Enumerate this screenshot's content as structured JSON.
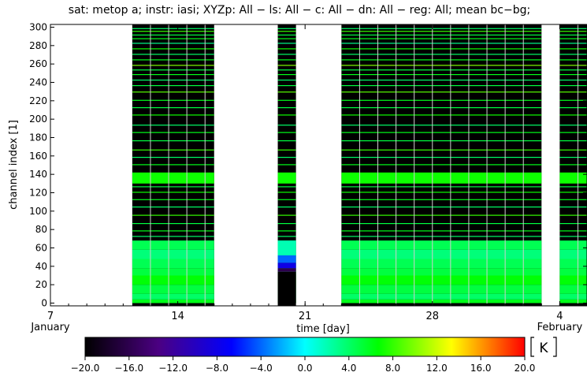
{
  "chart_data": {
    "type": "heatmap",
    "title": "sat: metop a; instr: iasi; XYZp: All − ls: All − c: All − dn: All − reg: All; mean bc−bg;",
    "xlabel": "time [day]",
    "ylabel": "channel index [1]",
    "x_ticks": [
      {
        "day": 7,
        "label": "7",
        "sublabel": "January"
      },
      {
        "day": 14,
        "label": "14",
        "sublabel": ""
      },
      {
        "day": 21,
        "label": "21",
        "sublabel": ""
      },
      {
        "day": 28,
        "label": "28",
        "sublabel": ""
      },
      {
        "day": 35,
        "label": "4",
        "sublabel": "February"
      }
    ],
    "xlim": [
      7,
      36.5
    ],
    "y_ticks": [
      "0",
      "20",
      "40",
      "60",
      "80",
      "100",
      "120",
      "140",
      "160",
      "180",
      "200",
      "220",
      "240",
      "260",
      "280",
      "300"
    ],
    "ylim": [
      -3,
      303
    ],
    "data_segments": [
      {
        "start_day": 11.5,
        "end_day": 16.0,
        "column_days": [
          11.5,
          12.5,
          13.5,
          14.5,
          15.5
        ]
      },
      {
        "start_day": 19.5,
        "end_day": 20.5,
        "column_days": [
          19.5
        ]
      },
      {
        "start_day": 23.0,
        "end_day": 34.0,
        "column_days": [
          23.0,
          24.0,
          25.0,
          26.0,
          27.0,
          28.0,
          29.0,
          30.0,
          31.0,
          32.0,
          33.0
        ]
      },
      {
        "start_day": 35.0,
        "end_day": 36.5,
        "column_days": [
          35.0,
          36.0
        ]
      }
    ],
    "channel_bands": [
      {
        "from": 0,
        "to": 4,
        "value": 6.0
      },
      {
        "from": 4,
        "to": 10,
        "value": 4.0
      },
      {
        "from": 10,
        "to": 20,
        "value": 5.0
      },
      {
        "from": 20,
        "to": 30,
        "value": 6.5
      },
      {
        "from": 30,
        "to": 38,
        "value": 5.0
      },
      {
        "from": 38,
        "to": 48,
        "value": 4.5
      },
      {
        "from": 48,
        "to": 58,
        "value": 3.5
      },
      {
        "from": 58,
        "to": 68,
        "value": 4.5
      },
      {
        "from": 130,
        "to": 142,
        "value": 7.0
      }
    ],
    "segment_channel_overrides": [
      {
        "segment": 1,
        "from": 0,
        "to": 34,
        "value": -20.0
      },
      {
        "segment": 1,
        "from": 34,
        "to": 38,
        "value": -16.0
      },
      {
        "segment": 1,
        "from": 38,
        "to": 44,
        "value": -8.0
      },
      {
        "segment": 1,
        "from": 44,
        "to": 52,
        "value": -4.0
      },
      {
        "segment": 1,
        "from": 52,
        "to": 68,
        "value": 2.0
      }
    ],
    "sparse_channels": [
      {
        "channel": 72,
        "value": 4.0
      },
      {
        "channel": 78,
        "value": 6.0
      },
      {
        "channel": 86,
        "value": 5.0
      },
      {
        "channel": 95,
        "value": 8.0
      },
      {
        "channel": 104,
        "value": 4.0
      },
      {
        "channel": 112,
        "value": 6.0
      },
      {
        "channel": 120,
        "value": 7.0
      },
      {
        "channel": 126,
        "value": 5.0
      },
      {
        "channel": 150,
        "value": 6.0
      },
      {
        "channel": 158,
        "value": 4.0
      },
      {
        "channel": 166,
        "value": 8.0
      },
      {
        "channel": 176,
        "value": 5.0
      },
      {
        "channel": 185,
        "value": 6.0
      },
      {
        "channel": 193,
        "value": 4.0
      },
      {
        "channel": 204,
        "value": 7.0
      },
      {
        "channel": 212,
        "value": 5.0
      },
      {
        "channel": 220,
        "value": 6.0
      },
      {
        "channel": 229,
        "value": 9.0
      },
      {
        "channel": 236,
        "value": 5.0
      },
      {
        "channel": 242,
        "value": 4.0
      },
      {
        "channel": 248,
        "value": 6.0
      },
      {
        "channel": 253,
        "value": 5.0
      },
      {
        "channel": 258,
        "value": 10.0
      },
      {
        "channel": 264,
        "value": 6.0
      },
      {
        "channel": 270,
        "value": 4.0
      },
      {
        "channel": 276,
        "value": 7.0
      },
      {
        "channel": 282,
        "value": 3.0
      },
      {
        "channel": 287,
        "value": 6.0
      },
      {
        "channel": 291,
        "value": 5.0
      },
      {
        "channel": 295,
        "value": 8.0
      },
      {
        "channel": 298,
        "value": 4.0
      }
    ],
    "colorbar": {
      "min": -20.0,
      "max": 20.0,
      "unit": "K",
      "tick_labels": [
        "−20.0",
        "−16.0",
        "−12.0",
        "−8.0",
        "−4.0",
        "0.0",
        "4.0",
        "8.0",
        "12.0",
        "16.0",
        "20.0"
      ],
      "colors": [
        "#000000",
        "#4b0082",
        "#0000ff",
        "#00ffff",
        "#00ff00",
        "#ffff00",
        "#ff0000"
      ]
    }
  }
}
